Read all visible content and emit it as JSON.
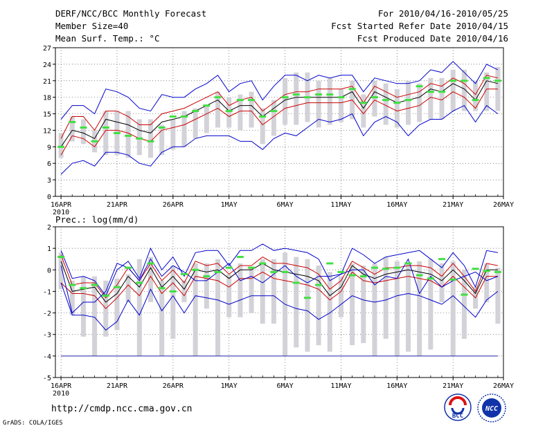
{
  "header": {
    "title": "DERF/NCC/BCC Monthly Forecast",
    "member_size": "Member Size=40",
    "variable": "Mean Surf. Temp.: °C",
    "forecast_period": "For 2010/04/16-2010/05/25",
    "started_refer": "Fcst Started Refer Date 2010/04/15",
    "produced": "Fcst Produced Date 2010/04/16"
  },
  "footer": {
    "url": "http://cmdp.ncc.cma.gov.cn",
    "grads": "GrADS: COLA/IGES"
  },
  "logos": {
    "bcc": "BCC",
    "ncc": "NCC"
  },
  "colors": {
    "mean": "#000000",
    "spread": "#cc0000",
    "range": "#0000cc",
    "observed_bar": "#d2d2d8",
    "median_mark": "#40e040",
    "reference_line": "#2222aa"
  },
  "chart_data": [
    {
      "type": "line",
      "title": "Mean Surf. Temp.: °C",
      "x": [
        1,
        2,
        3,
        4,
        5,
        6,
        7,
        8,
        9,
        10,
        11,
        12,
        13,
        14,
        15,
        16,
        17,
        18,
        19,
        20,
        21,
        22,
        23,
        24,
        25,
        26,
        27,
        28,
        29,
        30,
        31,
        32,
        33,
        34,
        35,
        36,
        37,
        38,
        39,
        40
      ],
      "xlim": [
        0.5,
        40.5
      ],
      "ylim": [
        0,
        27
      ],
      "yticks": [
        0,
        3,
        6,
        9,
        12,
        15,
        18,
        21,
        24,
        27
      ],
      "xticks": [
        {
          "x": 1,
          "label": "16APR",
          "sub": "2010"
        },
        {
          "x": 6,
          "label": "21APR"
        },
        {
          "x": 11,
          "label": "26APR"
        },
        {
          "x": 16,
          "label": "1MAY"
        },
        {
          "x": 21,
          "label": "6MAY"
        },
        {
          "x": 26,
          "label": "11MAY"
        },
        {
          "x": 31,
          "label": "16MAY"
        },
        {
          "x": 36,
          "label": "21MAY"
        },
        {
          "x": 40.5,
          "label": "26MAY"
        }
      ],
      "grid": true,
      "series": [
        {
          "name": "max",
          "role": "range",
          "values": [
            14,
            16.5,
            16.5,
            15,
            19.5,
            19,
            18,
            16,
            15.5,
            18.5,
            18,
            18,
            19.5,
            20.5,
            22,
            19,
            20.5,
            21,
            17.5,
            20,
            22,
            22,
            21,
            22,
            21.5,
            22,
            22,
            19,
            21.5,
            21,
            20.5,
            20.5,
            21,
            23,
            22.5,
            24.5,
            22.5,
            20.5,
            24,
            23
          ]
        },
        {
          "name": "upper",
          "role": "spread",
          "values": [
            10.5,
            14.5,
            14.5,
            12,
            15.5,
            15.5,
            14.5,
            13,
            13,
            15,
            15.5,
            16,
            17,
            18,
            19,
            16.5,
            17.5,
            18,
            15.5,
            17,
            18.5,
            19,
            19,
            19.5,
            19.5,
            19.5,
            20,
            17,
            20,
            19,
            18,
            18.5,
            19,
            20.5,
            20,
            21.5,
            20.5,
            18.5,
            22,
            21.5
          ]
        },
        {
          "name": "mean",
          "role": "mean",
          "values": [
            9,
            12,
            11.5,
            10.5,
            14,
            13.5,
            13,
            12,
            11.5,
            13.5,
            14,
            14.5,
            15.5,
            16.5,
            17.5,
            15.5,
            16.5,
            16.5,
            14.5,
            16,
            17.5,
            18,
            18,
            18,
            18,
            18,
            19,
            16,
            19,
            18,
            17,
            17.5,
            18,
            19.5,
            19,
            20.5,
            19.5,
            17.5,
            21,
            20.5
          ]
        },
        {
          "name": "lower",
          "role": "spread",
          "values": [
            7.5,
            11,
            10.5,
            9,
            12,
            12,
            11.5,
            10.5,
            10,
            12,
            12.5,
            13,
            14,
            15,
            16,
            14.5,
            15.5,
            15.5,
            13,
            14.5,
            16,
            16.5,
            17,
            17,
            17,
            17,
            17.5,
            15,
            17.5,
            16.5,
            15.5,
            16,
            16.5,
            18,
            17.5,
            19,
            18,
            16,
            19.5,
            19.5
          ]
        },
        {
          "name": "min",
          "role": "range",
          "values": [
            4,
            6,
            6.5,
            5.5,
            8,
            8,
            7.5,
            6,
            5.5,
            8,
            9,
            9,
            10.5,
            11,
            11,
            11,
            10,
            10,
            8.5,
            10.5,
            11.5,
            11,
            12.5,
            14,
            13.5,
            14,
            15,
            11,
            13.5,
            14.5,
            13.5,
            11,
            13,
            14,
            14,
            15.5,
            16.5,
            13.5,
            16.5,
            15
          ]
        }
      ],
      "bars": [
        [
          7,
          11.5
        ],
        [
          10,
          14.5
        ],
        [
          9.5,
          14
        ],
        [
          8,
          12
        ],
        [
          7.5,
          15.5
        ],
        [
          7.5,
          15.5
        ],
        [
          7,
          15.5
        ],
        [
          7.5,
          14
        ],
        [
          7,
          14
        ],
        [
          7.5,
          13
        ],
        [
          8.5,
          14
        ],
        [
          9,
          15.5
        ],
        [
          10.5,
          16
        ],
        [
          11.5,
          16.5
        ],
        [
          12.5,
          19
        ],
        [
          12.5,
          18
        ],
        [
          12,
          18.5
        ],
        [
          12.5,
          19
        ],
        [
          9.5,
          16
        ],
        [
          11,
          17.5
        ],
        [
          13,
          21.5
        ],
        [
          13,
          22.5
        ],
        [
          13.5,
          22.5
        ],
        [
          12.5,
          21
        ],
        [
          13,
          21.5
        ],
        [
          13.5,
          19.5
        ],
        [
          14,
          21
        ],
        [
          12.5,
          18.5
        ],
        [
          14.5,
          21
        ],
        [
          13,
          20.5
        ],
        [
          12.5,
          19.5
        ],
        [
          13,
          21
        ],
        [
          13.5,
          20.5
        ],
        [
          14,
          21.5
        ],
        [
          14,
          21.5
        ],
        [
          15.5,
          23
        ],
        [
          15.5,
          23
        ],
        [
          15.5,
          21
        ],
        [
          15.5,
          22.5
        ],
        [
          15.5,
          23.5
        ]
      ],
      "median": [
        9,
        13.5,
        12.5,
        10,
        12.5,
        11.5,
        11,
        10.5,
        10,
        12.5,
        14.5,
        14.5,
        15.5,
        16.5,
        18,
        15.5,
        17.5,
        17.5,
        14.5,
        15.5,
        18,
        18.5,
        18,
        18.5,
        18.5,
        18,
        19.5,
        17,
        18,
        17.5,
        17,
        17.5,
        20,
        19,
        19,
        21,
        21,
        17.5,
        21.5,
        21
      ]
    },
    {
      "type": "line",
      "title": "Prec.: log(mm/d)",
      "x": [
        1,
        2,
        3,
        4,
        5,
        6,
        7,
        8,
        9,
        10,
        11,
        12,
        13,
        14,
        15,
        16,
        17,
        18,
        19,
        20,
        21,
        22,
        23,
        24,
        25,
        26,
        27,
        28,
        29,
        30,
        31,
        32,
        33,
        34,
        35,
        36,
        37,
        38,
        39,
        40
      ],
      "xlim": [
        0.5,
        40.5
      ],
      "ylim": [
        -5,
        2
      ],
      "yticks": [
        -5,
        -4,
        -3,
        -2,
        -1,
        0,
        1,
        2
      ],
      "xticks": [
        {
          "x": 1,
          "label": "16APR",
          "sub": "2010"
        },
        {
          "x": 6,
          "label": "21APR"
        },
        {
          "x": 11,
          "label": "26APR"
        },
        {
          "x": 16,
          "label": "1MAY"
        },
        {
          "x": 21,
          "label": "6MAY"
        },
        {
          "x": 26,
          "label": "11MAY"
        },
        {
          "x": 31,
          "label": "16MAY"
        },
        {
          "x": 36,
          "label": "21MAY"
        },
        {
          "x": 40.5,
          "label": "26MAY"
        }
      ],
      "grid": true,
      "reference_line": -4,
      "series": [
        {
          "name": "max",
          "role": "range",
          "values": [
            0.9,
            -0.4,
            -0.3,
            -0.5,
            -1.2,
            0,
            0.4,
            -0.4,
            1,
            0,
            0.6,
            -0.3,
            0.8,
            0.9,
            0.9,
            0.2,
            0.9,
            0.9,
            1.2,
            0.9,
            1,
            0.9,
            0.8,
            0.5,
            -0.5,
            -0.2,
            1,
            0.7,
            0.3,
            0.6,
            0.7,
            0.8,
            0.9,
            0.5,
            0.1,
            0.8,
            0.2,
            -0.8,
            0.9,
            0.8
          ]
        },
        {
          "name": "upper",
          "role": "spread",
          "values": [
            0.7,
            -0.7,
            -0.6,
            -0.6,
            -1.3,
            -0.7,
            0.1,
            -0.5,
            0.3,
            -0.5,
            0,
            -0.6,
            0.4,
            0.2,
            0.3,
            -0.2,
            0.2,
            0.2,
            0.6,
            0.3,
            0.3,
            0.2,
            0.1,
            -0.2,
            -0.9,
            -0.5,
            0.4,
            0.1,
            -0.2,
            0.1,
            0.1,
            0.2,
            0.2,
            0.1,
            -0.3,
            0.3,
            -0.3,
            -1,
            0.3,
            0.2
          ]
        },
        {
          "name": "mean",
          "role": "mean",
          "values": [
            0.4,
            -1,
            -0.9,
            -0.8,
            -1.5,
            -1.1,
            -0.3,
            -0.8,
            0.1,
            -0.8,
            -0.3,
            -0.9,
            0,
            -0.1,
            0,
            -0.4,
            0,
            0,
            0.3,
            0,
            -0.1,
            -0.2,
            -0.3,
            -0.5,
            -1.2,
            -0.8,
            0.2,
            -0.2,
            -0.4,
            -0.2,
            -0.1,
            0,
            -0.1,
            -0.2,
            -0.5,
            0,
            -0.5,
            -1.1,
            0,
            0
          ]
        },
        {
          "name": "lower",
          "role": "spread",
          "values": [
            -0.6,
            -1.1,
            -1.1,
            -1.2,
            -1.8,
            -1.3,
            -0.7,
            -1.2,
            -0.3,
            -1.1,
            -0.6,
            -1.2,
            -0.3,
            -0.4,
            -0.5,
            -0.8,
            -0.4,
            -0.4,
            -0.1,
            -0.4,
            -0.5,
            -0.6,
            -0.7,
            -0.9,
            -1.4,
            -1,
            -0.1,
            -0.5,
            -0.6,
            -0.5,
            -0.4,
            -0.3,
            -0.4,
            -0.5,
            -0.8,
            -0.3,
            -0.8,
            -1.3,
            -0.3,
            -0.3
          ]
        },
        {
          "name": "min",
          "role": "range",
          "values": [
            -0.6,
            -2.1,
            -2.1,
            -2.2,
            -2.8,
            -2.4,
            -1.4,
            -2.1,
            -0.9,
            -1.9,
            -1.2,
            -2,
            -1.2,
            -1.3,
            -1.4,
            -1.6,
            -1.4,
            -1.2,
            -1.2,
            -1.2,
            -1.6,
            -1.8,
            -1.9,
            -2.3,
            -2,
            -1.6,
            -1.2,
            -1.4,
            -1.5,
            -1.4,
            -1.2,
            -1.1,
            -1.2,
            -1.4,
            -1.6,
            -1.2,
            -1.7,
            -2.2,
            -1.4,
            -1
          ]
        },
        {
          "name": "segment",
          "role": "range",
          "values": [
            0.2,
            -2,
            -1.5,
            -1.5,
            -1,
            0.3,
            0.1,
            -0.5,
            0.5,
            -0.3,
            0.2,
            -0.1,
            -0.5,
            -0.5,
            -0.1,
            0.3,
            -0.5,
            -0.3,
            -0.6,
            -0.2,
            0.2,
            -0.3,
            -0.6,
            -0.3,
            -0.3,
            -0.2,
            0,
            0,
            -0.7,
            -0.3,
            -0.4,
            0.5,
            -1.1,
            -0.3,
            -0.8,
            -0.5,
            -0.3,
            -0.1,
            -0.5,
            -0.3
          ]
        }
      ],
      "bars": [
        [
          -0.9,
          0.8
        ],
        [
          -2.1,
          -0.5
        ],
        [
          -3.1,
          -0.3
        ],
        [
          -4,
          -0.3
        ],
        [
          -3.1,
          -0.5
        ],
        [
          -2.8,
          -0.4
        ],
        [
          -1.5,
          -0.2
        ],
        [
          -4,
          0.5
        ],
        [
          -1.5,
          0.6
        ],
        [
          -4,
          -0.5
        ],
        [
          -3.2,
          0.2
        ],
        [
          -1.5,
          -0.5
        ],
        [
          -4,
          0.3
        ],
        [
          -1.8,
          0.3
        ],
        [
          -4,
          0.5
        ],
        [
          -2.2,
          -0.2
        ],
        [
          -2.2,
          0.3
        ],
        [
          -2,
          0.1
        ],
        [
          -2.5,
          0.5
        ],
        [
          -2.5,
          0.5
        ],
        [
          -4,
          0.8
        ],
        [
          -3.6,
          0.6
        ],
        [
          -3.8,
          0.5
        ],
        [
          -3.5,
          0.2
        ],
        [
          -3.8,
          -0.1
        ],
        [
          -2.2,
          -0.3
        ],
        [
          -3.5,
          0.3
        ],
        [
          -3.4,
          0.2
        ],
        [
          -4,
          0.3
        ],
        [
          -3.2,
          0.6
        ],
        [
          -4,
          0.4
        ],
        [
          -3.8,
          0.3
        ],
        [
          -4,
          0.4
        ],
        [
          -3.7,
          0.5
        ],
        [
          -1.5,
          0.3
        ],
        [
          -4,
          0.4
        ],
        [
          -3.2,
          0
        ],
        [
          -1.8,
          -0.8
        ],
        [
          -1.5,
          0.3
        ],
        [
          -2.5,
          0.1
        ]
      ],
      "median": [
        0.6,
        -0.7,
        -0.85,
        -0.7,
        -1.2,
        -0.8,
        0.1,
        -0.6,
        0.3,
        -0.85,
        -1,
        -0.2,
        0,
        -0.3,
        -0.1,
        0.1,
        0.6,
        0.1,
        0.3,
        -0.1,
        -0.1,
        -0.6,
        -1.3,
        -0.7,
        0.3,
        -0.1,
        -0.25,
        -0.3,
        0.1,
        0.05,
        0.1,
        0.3,
        -0.25,
        -0.4,
        0.5,
        -0.45,
        -1.15,
        0.05,
        -0.05,
        -0.1
      ]
    }
  ]
}
